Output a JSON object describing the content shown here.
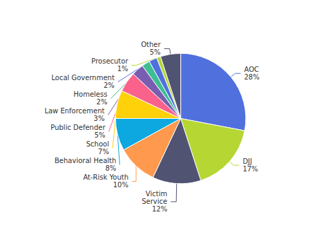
{
  "chart_data": {
    "type": "pie",
    "categories": [
      "AOC",
      "DJJ",
      "Victim\nService",
      "At-Risk Youth",
      "Behavioral Health",
      "School",
      "Public Defender",
      "Law Enforcement",
      "Homeless",
      "Local Government",
      "Prosecutor",
      "Other"
    ],
    "values": [
      28,
      17,
      12,
      10,
      8,
      7,
      5,
      3,
      2,
      2,
      1,
      5
    ],
    "value_labels": [
      "28%",
      "17%",
      "12%",
      "10%",
      "8%",
      "7%",
      "5%",
      "3%",
      "2%",
      "2%",
      "1%",
      "5%"
    ],
    "data_labels": true
  }
}
